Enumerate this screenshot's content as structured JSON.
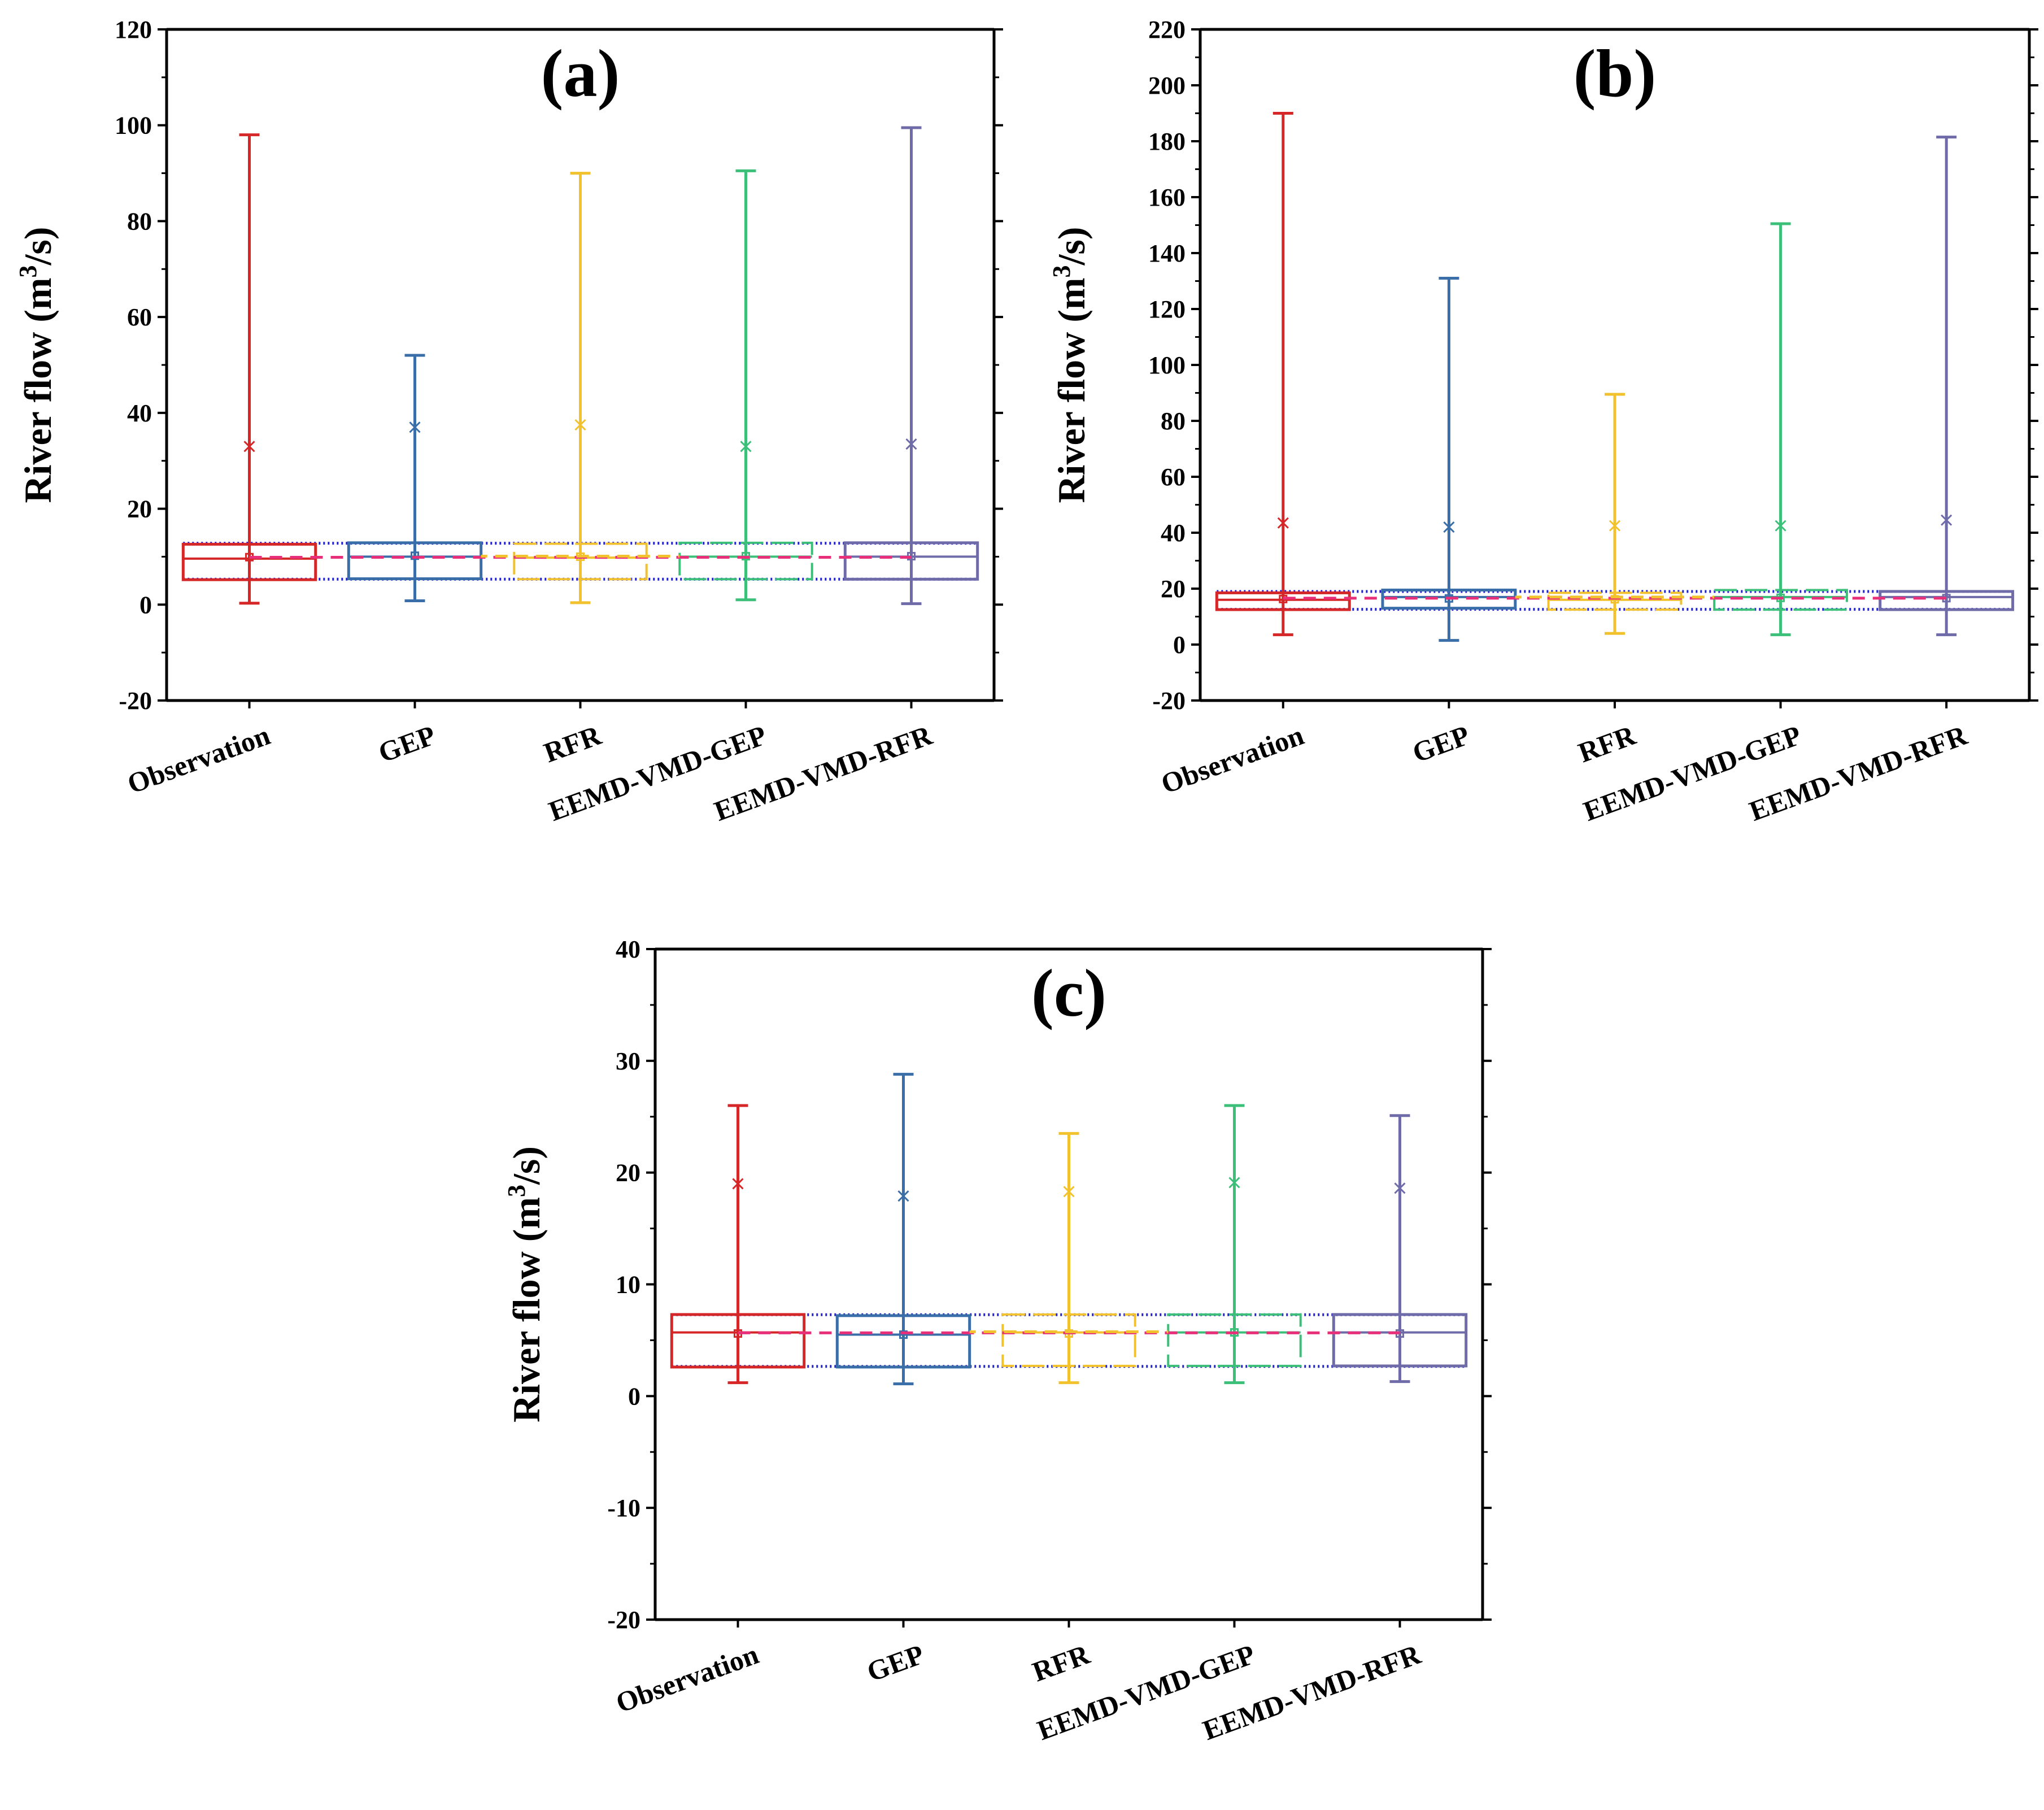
{
  "figure": {
    "series_colors": {
      "Observation": "#d62728",
      "GEP": "#3a6ea8",
      "RFR": "#f2c12e",
      "EEMD-VMD-GEP": "#3cc079",
      "EEMD-VMD-RFR": "#6f6aa8"
    },
    "connector_colors": {
      "dotted": "#2222cc",
      "median_dash": "#e8307a",
      "mean_dash": "#f2c12e"
    }
  },
  "chart_data": [
    {
      "panel": "a",
      "type": "box",
      "title": "(a)",
      "ylabel": "River flow (m",
      "ylabel_sup": "3",
      "ylabel_end": "/s)",
      "ylim": [
        -20,
        120
      ],
      "yticks": [
        -20,
        0,
        20,
        40,
        60,
        80,
        100,
        120
      ],
      "ytick_labels": [
        "-20",
        "0",
        "20",
        "40",
        "60",
        "80",
        "100",
        "120"
      ],
      "categories": [
        "Observation",
        "GEP",
        "RFR",
        "EEMD-VMD-GEP",
        "EEMD-VMD-RFR"
      ],
      "boxes": [
        {
          "min": 0.3,
          "q1": 5.2,
          "median": 9.6,
          "mean": 9.9,
          "q3": 12.6,
          "max": 98,
          "p99": 33
        },
        {
          "min": 0.8,
          "q1": 5.4,
          "median": 10.0,
          "mean": 10.2,
          "q3": 12.9,
          "max": 52,
          "p99": 37
        },
        {
          "min": 0.4,
          "q1": 5.3,
          "median": 9.8,
          "mean": 10.0,
          "q3": 12.7,
          "max": 90,
          "p99": 37.5
        },
        {
          "min": 1.0,
          "q1": 5.3,
          "median": 10.0,
          "mean": 10.1,
          "q3": 12.9,
          "max": 90.5,
          "p99": 33
        },
        {
          "min": 0.2,
          "q1": 5.3,
          "median": 10.0,
          "mean": 10.1,
          "q3": 12.9,
          "max": 99.5,
          "p99": 33.5
        }
      ]
    },
    {
      "panel": "b",
      "type": "box",
      "title": "(b)",
      "ylabel": "River flow (m",
      "ylabel_sup": "3",
      "ylabel_end": "/s)",
      "ylim": [
        -20,
        220
      ],
      "yticks": [
        -20,
        0,
        20,
        40,
        60,
        80,
        100,
        120,
        140,
        160,
        180,
        200,
        220
      ],
      "ytick_labels": [
        "-20",
        "0",
        "20",
        "40",
        "60",
        "80",
        "100",
        "120",
        "140",
        "160",
        "180",
        "200",
        "220"
      ],
      "categories": [
        "Observation",
        "GEP",
        "RFR",
        "EEMD-VMD-GEP",
        "EEMD-VMD-RFR"
      ],
      "boxes": [
        {
          "min": 3.5,
          "q1": 12.5,
          "median": 16.0,
          "mean": 16.3,
          "q3": 18.5,
          "max": 190,
          "p99": 43.5
        },
        {
          "min": 1.5,
          "q1": 13.0,
          "median": 17.0,
          "mean": 16.5,
          "q3": 19.5,
          "max": 131,
          "p99": 42
        },
        {
          "min": 4.0,
          "q1": 12.5,
          "median": 16.0,
          "mean": 16.2,
          "q3": 18.5,
          "max": 89.5,
          "p99": 42.5
        },
        {
          "min": 3.5,
          "q1": 12.5,
          "median": 17.0,
          "mean": 16.7,
          "q3": 19.5,
          "max": 150.5,
          "p99": 42.5
        },
        {
          "min": 3.5,
          "q1": 12.5,
          "median": 17.0,
          "mean": 16.6,
          "q3": 19.0,
          "max": 181.5,
          "p99": 44.5
        }
      ]
    },
    {
      "panel": "c",
      "type": "box",
      "title": "(c)",
      "ylabel": "River flow (m",
      "ylabel_sup": "3",
      "ylabel_end": "/s)",
      "ylim": [
        -20,
        40
      ],
      "yticks": [
        -20,
        -10,
        0,
        10,
        20,
        30,
        40
      ],
      "ytick_labels": [
        "-20",
        "-10",
        "0",
        "10",
        "20",
        "30",
        "40"
      ],
      "categories": [
        "Observation",
        "GEP",
        "RFR",
        "EEMD-VMD-GEP",
        "EEMD-VMD-RFR"
      ],
      "boxes": [
        {
          "min": 1.2,
          "q1": 2.6,
          "median": 5.7,
          "mean": 5.6,
          "q3": 7.3,
          "max": 26.0,
          "p99": 19.0
        },
        {
          "min": 1.1,
          "q1": 2.6,
          "median": 5.5,
          "mean": 5.5,
          "q3": 7.2,
          "max": 28.8,
          "p99": 17.9
        },
        {
          "min": 1.2,
          "q1": 2.7,
          "median": 5.7,
          "mean": 5.6,
          "q3": 7.3,
          "max": 23.5,
          "p99": 18.3
        },
        {
          "min": 1.2,
          "q1": 2.7,
          "median": 5.7,
          "mean": 5.7,
          "q3": 7.3,
          "max": 26.0,
          "p99": 19.1
        },
        {
          "min": 1.3,
          "q1": 2.7,
          "median": 5.7,
          "mean": 5.6,
          "q3": 7.3,
          "max": 25.1,
          "p99": 18.6
        }
      ]
    }
  ]
}
